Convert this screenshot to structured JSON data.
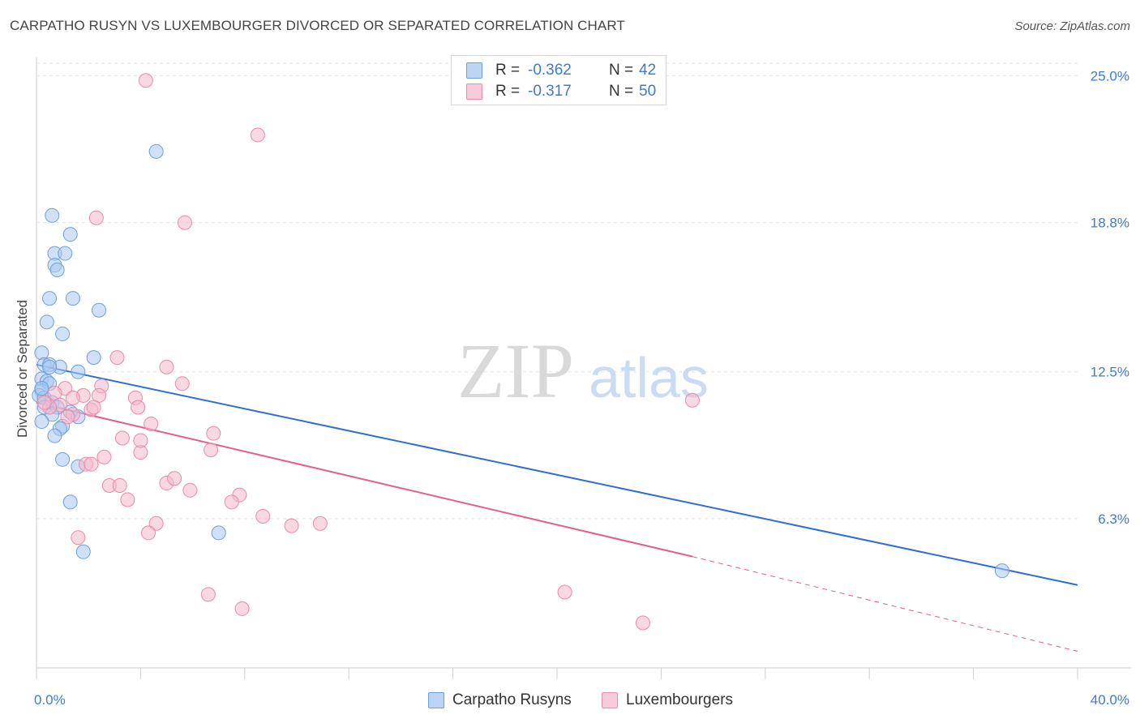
{
  "header": {
    "title": "CARPATHO RUSYN VS LUXEMBOURGER DIVORCED OR SEPARATED CORRELATION CHART",
    "source": "Source: ZipAtlas.com"
  },
  "legend": {
    "rows": [
      {
        "r_label": "R =",
        "r_value": "-0.362",
        "n_label": "N =",
        "n_value": "42"
      },
      {
        "r_label": "R =",
        "r_value": "-0.317",
        "n_label": "N =",
        "n_value": "50"
      }
    ]
  },
  "bottom_legend": {
    "series1": "Carpatho Rusyns",
    "series2": "Luxembourgers"
  },
  "watermark": {
    "zip": "ZIP",
    "atlas": "atlas"
  },
  "colors": {
    "blue_fill": "#a9c8f0",
    "blue_stroke": "#6f9fdc",
    "blue_line": "#2f6fce",
    "pink_fill": "#f6b8cb",
    "pink_stroke": "#e98aa8",
    "pink_line": "#e0608c",
    "tick_label": "#3d7bd1"
  },
  "chart_data": {
    "type": "scatter",
    "title": "CARPATHO RUSYN VS LUXEMBOURGER DIVORCED OR SEPARATED CORRELATION CHART",
    "xlabel": "",
    "ylabel": "Divorced or Separated",
    "xlim": [
      0,
      40
    ],
    "ylim": [
      0,
      25.8
    ],
    "x_tick_labels": [
      "0.0%",
      "40.0%"
    ],
    "y_ticks": [
      {
        "value": 6.3,
        "label": "6.3%"
      },
      {
        "value": 12.5,
        "label": "12.5%"
      },
      {
        "value": 18.8,
        "label": "18.8%"
      },
      {
        "value": 25.0,
        "label": "25.0%"
      }
    ],
    "grid": true,
    "legend_position": "top-center",
    "series": [
      {
        "name": "Carpatho Rusyns",
        "r": -0.362,
        "n": 42,
        "trend": {
          "x0": 0,
          "y0": 12.8,
          "x1": 40,
          "y1": 3.5
        },
        "points": [
          [
            4.6,
            21.8
          ],
          [
            0.6,
            19.1
          ],
          [
            1.3,
            18.3
          ],
          [
            0.7,
            17.5
          ],
          [
            1.1,
            17.5
          ],
          [
            0.7,
            17.0
          ],
          [
            0.8,
            16.8
          ],
          [
            0.5,
            15.6
          ],
          [
            1.4,
            15.6
          ],
          [
            2.4,
            15.1
          ],
          [
            0.4,
            14.6
          ],
          [
            1.0,
            14.1
          ],
          [
            0.2,
            13.3
          ],
          [
            2.2,
            13.1
          ],
          [
            0.3,
            12.8
          ],
          [
            0.5,
            12.8
          ],
          [
            0.9,
            12.7
          ],
          [
            1.6,
            12.5
          ],
          [
            0.2,
            12.2
          ],
          [
            0.4,
            12.1
          ],
          [
            0.5,
            12.0
          ],
          [
            0.2,
            11.7
          ],
          [
            0.1,
            11.5
          ],
          [
            0.3,
            11.4
          ],
          [
            0.6,
            11.2
          ],
          [
            0.3,
            11.0
          ],
          [
            0.8,
            11.0
          ],
          [
            1.3,
            10.8
          ],
          [
            0.6,
            10.7
          ],
          [
            1.6,
            10.6
          ],
          [
            0.2,
            10.4
          ],
          [
            1.0,
            10.2
          ],
          [
            0.9,
            10.1
          ],
          [
            0.7,
            9.8
          ],
          [
            1.0,
            8.8
          ],
          [
            1.6,
            8.5
          ],
          [
            1.3,
            7.0
          ],
          [
            7.0,
            5.7
          ],
          [
            1.8,
            4.9
          ],
          [
            37.1,
            4.1
          ],
          [
            0.5,
            12.7
          ],
          [
            0.2,
            11.8
          ]
        ]
      },
      {
        "name": "Luxembourgers",
        "r": -0.317,
        "n": 50,
        "trend": {
          "x0": 0,
          "y0": 11.2,
          "x1": 25.2,
          "y1": 4.7
        },
        "trend_dashed": {
          "x0": 25.2,
          "y0": 4.7,
          "x1": 40,
          "y1": 0.7
        },
        "points": [
          [
            4.2,
            24.8
          ],
          [
            8.5,
            22.5
          ],
          [
            2.3,
            19.0
          ],
          [
            5.7,
            18.8
          ],
          [
            3.1,
            13.1
          ],
          [
            5.0,
            12.7
          ],
          [
            5.6,
            12.0
          ],
          [
            2.5,
            11.9
          ],
          [
            1.1,
            11.8
          ],
          [
            0.7,
            11.6
          ],
          [
            1.8,
            11.5
          ],
          [
            2.4,
            11.5
          ],
          [
            3.8,
            11.4
          ],
          [
            1.4,
            11.4
          ],
          [
            25.2,
            11.3
          ],
          [
            0.9,
            11.1
          ],
          [
            0.5,
            11.0
          ],
          [
            3.9,
            11.0
          ],
          [
            2.1,
            10.9
          ],
          [
            1.4,
            10.7
          ],
          [
            4.4,
            10.3
          ],
          [
            6.8,
            9.9
          ],
          [
            3.3,
            9.7
          ],
          [
            6.7,
            9.2
          ],
          [
            4.0,
            9.1
          ],
          [
            2.6,
            8.9
          ],
          [
            1.9,
            8.6
          ],
          [
            2.1,
            8.6
          ],
          [
            5.0,
            7.8
          ],
          [
            2.8,
            7.7
          ],
          [
            3.2,
            7.7
          ],
          [
            5.9,
            7.5
          ],
          [
            7.8,
            7.3
          ],
          [
            3.5,
            7.1
          ],
          [
            7.5,
            7.0
          ],
          [
            8.7,
            6.4
          ],
          [
            4.6,
            6.1
          ],
          [
            10.9,
            6.1
          ],
          [
            9.8,
            6.0
          ],
          [
            4.3,
            5.7
          ],
          [
            1.6,
            5.5
          ],
          [
            6.6,
            3.1
          ],
          [
            20.3,
            3.2
          ],
          [
            7.9,
            2.5
          ],
          [
            23.3,
            1.9
          ],
          [
            0.3,
            11.2
          ],
          [
            1.2,
            10.6
          ],
          [
            2.2,
            11.0
          ],
          [
            4.0,
            9.6
          ],
          [
            5.3,
            8.0
          ]
        ]
      }
    ]
  }
}
